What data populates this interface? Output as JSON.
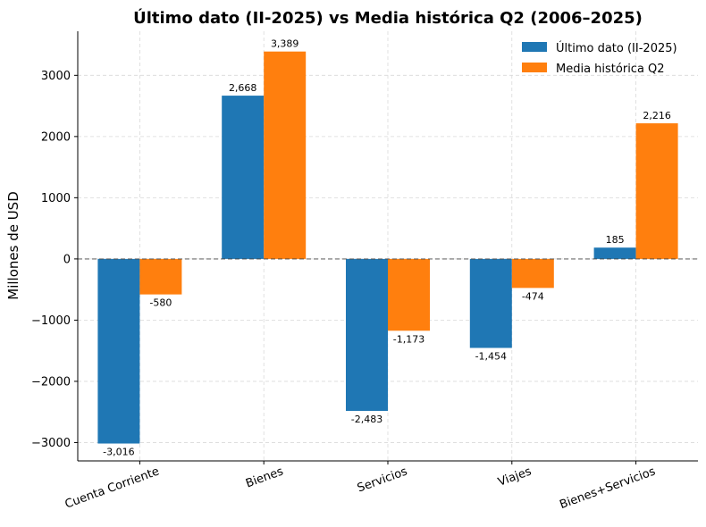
{
  "chart_data": {
    "type": "bar",
    "title": "Último dato (II-2025) vs Media histórica Q2 (2006–2025)",
    "xlabel": "",
    "ylabel": "Millones de USD",
    "categories": [
      "Cuenta Corriente",
      "Bienes",
      "Servicios",
      "Viajes",
      "Bienes+Servicios"
    ],
    "series": [
      {
        "name": "Último dato (II-2025)",
        "color": "#1f77b4",
        "values": [
          -3016,
          2668,
          -2483,
          -1454,
          185
        ],
        "labels": [
          "-3,016",
          "2,668",
          "-2,483",
          "-1,454",
          "185"
        ]
      },
      {
        "name": "Media histórica Q2",
        "color": "#ff7f0e",
        "values": [
          -580,
          3389,
          -1173,
          -474,
          2216
        ],
        "labels": [
          "-580",
          "3,389",
          "-1,173",
          "-474",
          "2,216"
        ]
      }
    ],
    "ylim": [
      -3300,
      3720
    ],
    "yticks": [
      -3000,
      -2000,
      -1000,
      0,
      1000,
      2000,
      3000
    ],
    "ytick_labels": [
      "−3000",
      "−2000",
      "−1000",
      "0",
      "1000",
      "2000",
      "3000"
    ],
    "grid": true,
    "legend_position": "top-right",
    "zero_line": true
  }
}
